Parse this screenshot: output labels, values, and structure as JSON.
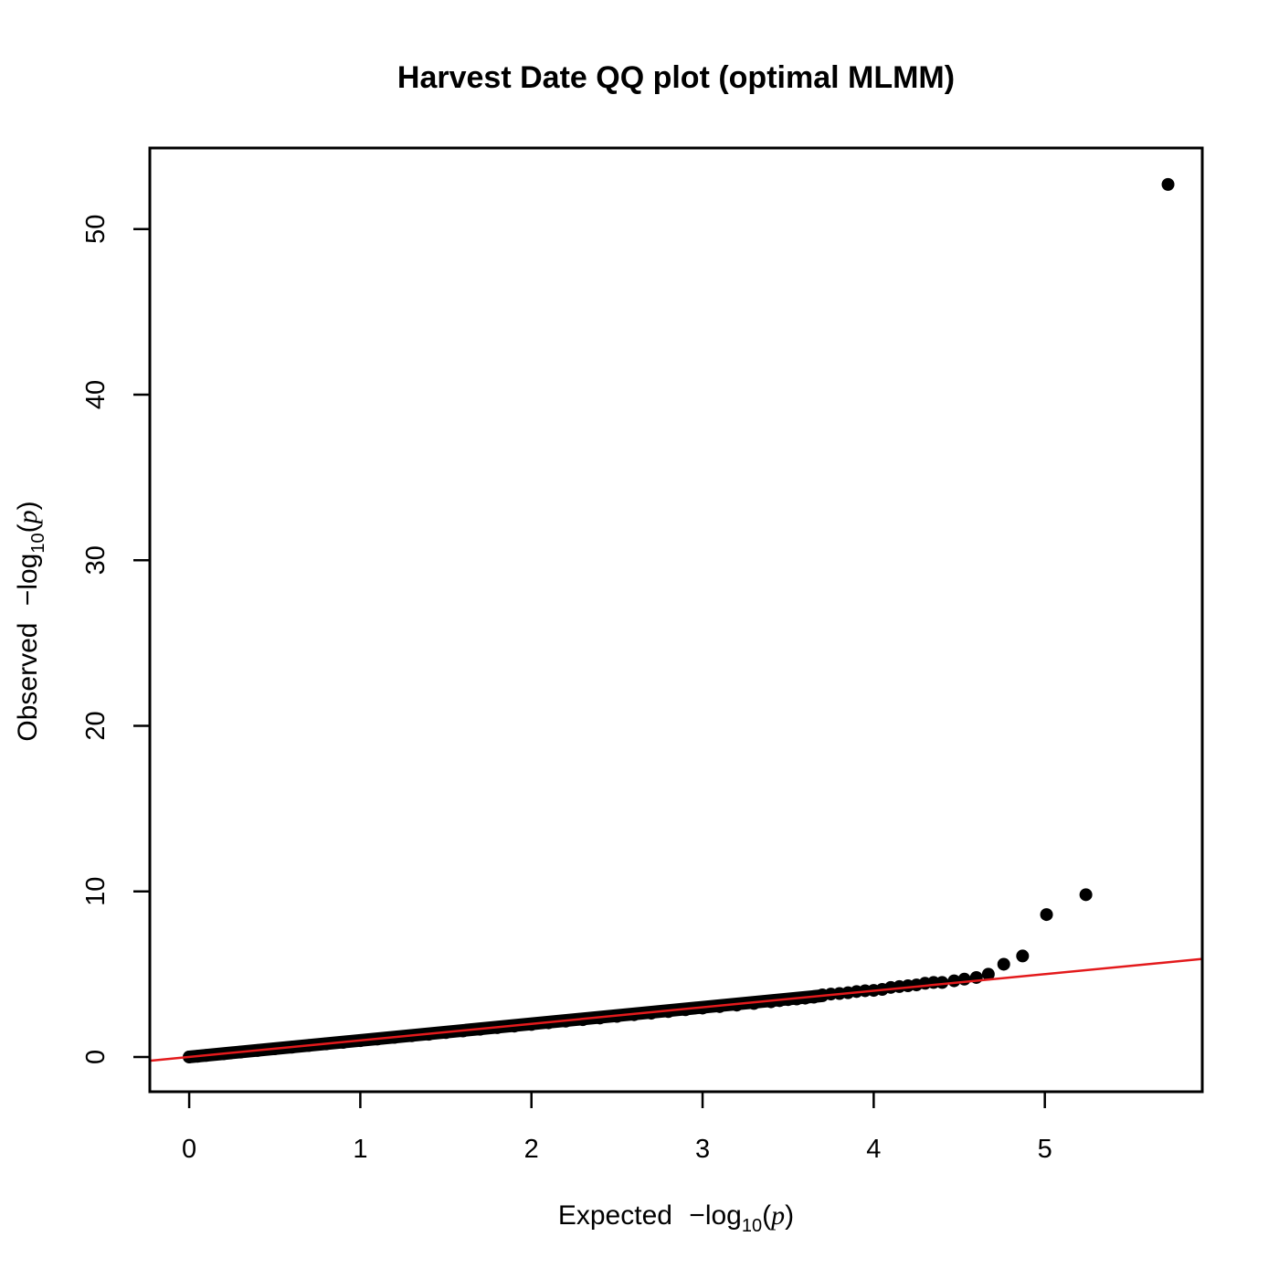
{
  "chart_data": {
    "type": "scatter",
    "title": "Harvest Date QQ plot (optimal MLMM)",
    "xlabel": {
      "prefix": "Expected",
      "minus": "−",
      "log": "log",
      "subscript": "10",
      "open_paren": "(",
      "variable": "p",
      "close_paren": ")"
    },
    "ylabel": {
      "prefix": "Observed",
      "minus": "−",
      "log": "log",
      "subscript": "10",
      "open_paren": "(",
      "variable": "p",
      "close_paren": ")"
    },
    "xlim": [
      -0.23,
      5.92
    ],
    "ylim": [
      -2.1,
      54.9
    ],
    "xticks": [
      0,
      1,
      2,
      3,
      4,
      5
    ],
    "yticks": [
      0,
      10,
      20,
      30,
      40,
      50
    ],
    "grid": false,
    "legend": "none",
    "point_color": "#000000",
    "reference_line": {
      "intercept": 0,
      "slope": 1,
      "color": "#e31a1c"
    },
    "series": [
      {
        "x": [
          0.0,
          0.05,
          0.1,
          0.2,
          0.3,
          0.4,
          0.5,
          0.6,
          0.7,
          0.8,
          0.9,
          1.0,
          1.1,
          1.2,
          1.3,
          1.4,
          1.5,
          1.6,
          1.7,
          1.8,
          1.9,
          2.0,
          2.1,
          2.2,
          2.3,
          2.4,
          2.5,
          2.6,
          2.7,
          2.8,
          2.9,
          3.0,
          3.1,
          3.2,
          3.3,
          3.4,
          3.45,
          3.5,
          3.55,
          3.6,
          3.65,
          3.7,
          3.75,
          3.8,
          3.85,
          3.9,
          3.95,
          4.0,
          4.05,
          4.1,
          4.15,
          4.2,
          4.25,
          4.3,
          4.35,
          4.4,
          4.47,
          4.53,
          4.6,
          4.67,
          4.76,
          4.87,
          5.01,
          5.24,
          5.72
        ],
        "y": [
          0.0,
          0.04,
          0.09,
          0.19,
          0.29,
          0.39,
          0.49,
          0.59,
          0.69,
          0.79,
          0.88,
          0.98,
          1.08,
          1.18,
          1.28,
          1.37,
          1.47,
          1.57,
          1.67,
          1.77,
          1.86,
          1.96,
          2.06,
          2.16,
          2.25,
          2.35,
          2.45,
          2.55,
          2.64,
          2.74,
          2.85,
          2.95,
          3.04,
          3.13,
          3.23,
          3.33,
          3.4,
          3.46,
          3.5,
          3.55,
          3.61,
          3.75,
          3.8,
          3.83,
          3.88,
          3.95,
          4.0,
          4.02,
          4.08,
          4.2,
          4.25,
          4.3,
          4.35,
          4.45,
          4.5,
          4.5,
          4.6,
          4.7,
          4.8,
          5.0,
          5.6,
          6.1,
          8.6,
          9.8,
          52.7
        ]
      }
    ]
  }
}
